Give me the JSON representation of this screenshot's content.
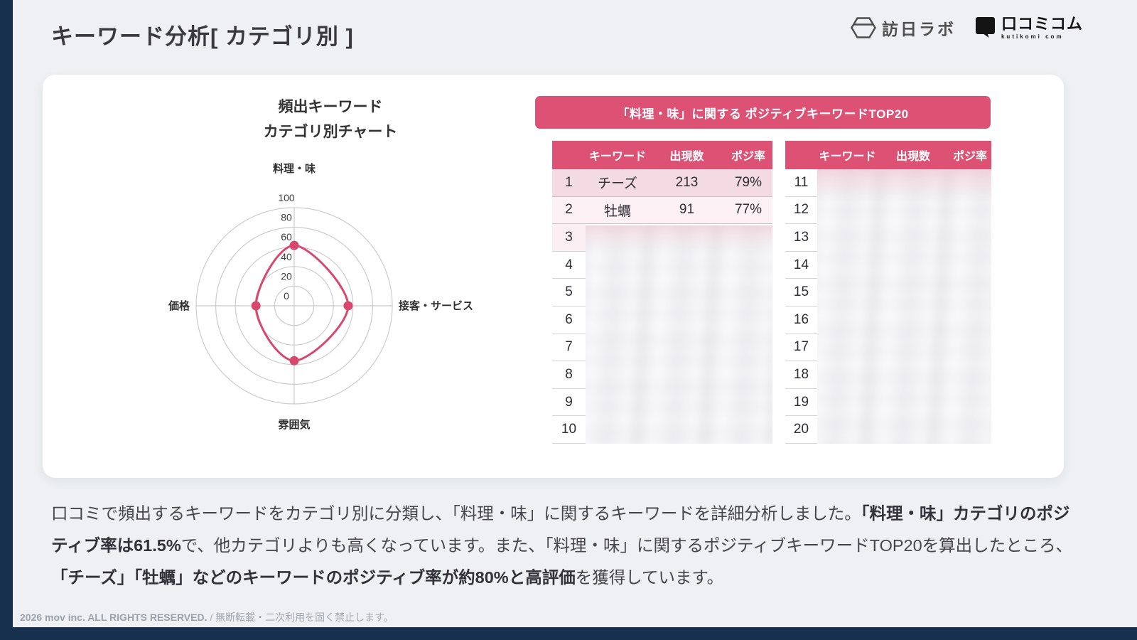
{
  "page": {
    "title": "キーワード分析[ カテゴリ別 ]",
    "footer_left": "2026 mov inc. ALL RIGHTS RESERVED.",
    "footer_right": " / 無断転載・二次利用を固く禁止します。"
  },
  "logos": {
    "honichi_label": "訪日ラボ",
    "kutikomi_label": "口コミコム",
    "kutikomi_sub": "kutikomi com"
  },
  "chart_data": {
    "type": "radar",
    "title_lines": [
      "頻出キーワード",
      "カテゴリ別チャート"
    ],
    "categories": [
      "料理・味",
      "接客・サービス",
      "雰囲気",
      "価格"
    ],
    "values": [
      61.5,
      55,
      56,
      39
    ],
    "ticks": [
      0,
      20,
      40,
      60,
      80,
      100
    ],
    "max": 100,
    "grid": true,
    "line_color": "#d8486e",
    "grid_color": "#cccccc"
  },
  "table_section": {
    "banner": "「料理・味」に関する ポジティブキーワードTOP20",
    "columns": [
      "キーワード",
      "出現数",
      "ポジ率"
    ],
    "tables": {
      "left": [
        {
          "rank": "1",
          "keyword": "チーズ",
          "count": "213",
          "rate": "79%",
          "masked": false
        },
        {
          "rank": "2",
          "keyword": "牡蠣",
          "count": "91",
          "rate": "77%",
          "masked": false
        },
        {
          "rank": "3",
          "masked": true
        },
        {
          "rank": "4",
          "masked": true
        },
        {
          "rank": "5",
          "masked": true
        },
        {
          "rank": "6",
          "masked": true
        },
        {
          "rank": "7",
          "masked": true
        },
        {
          "rank": "8",
          "masked": true
        },
        {
          "rank": "9",
          "masked": true
        },
        {
          "rank": "10",
          "masked": true
        }
      ],
      "right": [
        {
          "rank": "11",
          "masked": true
        },
        {
          "rank": "12",
          "masked": true
        },
        {
          "rank": "13",
          "masked": true
        },
        {
          "rank": "14",
          "masked": true
        },
        {
          "rank": "15",
          "masked": true
        },
        {
          "rank": "16",
          "masked": true
        },
        {
          "rank": "17",
          "masked": true
        },
        {
          "rank": "18",
          "masked": true
        },
        {
          "rank": "19",
          "masked": true
        },
        {
          "rank": "20",
          "masked": true
        }
      ]
    }
  },
  "summary": {
    "segments": [
      {
        "text": "口コミで頻出するキーワードをカテゴリ別に分類し、「料理・味」に関するキーワードを詳細分析しました。",
        "bold": false
      },
      {
        "text": "「料理・味」カテゴリのポジティブ率は61.5%",
        "bold": true
      },
      {
        "text": "で、他カテゴリよりも高くなっています。また、「料理・味」に関するポジティブキーワードTOP20を算出したところ、",
        "bold": false
      },
      {
        "text": "「チーズ」「牡蠣」などのキーワードのポジティブ率が約80%と高評価",
        "bold": true
      },
      {
        "text": "を獲得しています。",
        "bold": false
      }
    ]
  },
  "colors": {
    "accent_pink": "#dd5174",
    "chart_line": "#d8486e",
    "navy_frame": "#16304d",
    "row1_bg": "#f4dae2",
    "row2_bg": "#fdf1f5"
  }
}
